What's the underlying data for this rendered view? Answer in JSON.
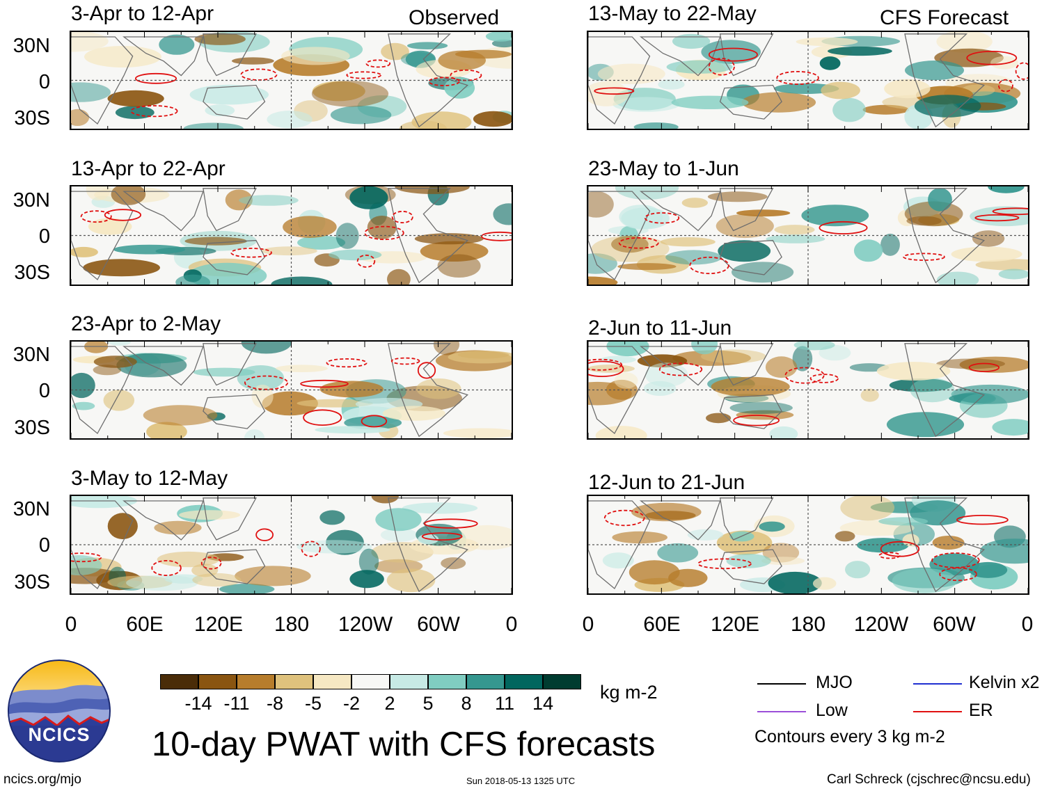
{
  "column_headers": {
    "left": "Observed",
    "right": "CFS Forecast"
  },
  "panels_left": [
    {
      "title": "3-Apr to 12-Apr"
    },
    {
      "title": "13-Apr to 22-Apr"
    },
    {
      "title": "23-Apr to 2-May"
    },
    {
      "title": "3-May to 12-May"
    }
  ],
  "panels_right": [
    {
      "title": "13-May to 22-May"
    },
    {
      "title": "23-May to 1-Jun"
    },
    {
      "title": "2-Jun to 11-Jun"
    },
    {
      "title": "12-Jun to 21-Jun"
    }
  ],
  "lat_labels": [
    "30N",
    "0",
    "30S"
  ],
  "lon_labels": [
    "0",
    "60E",
    "120E",
    "180",
    "120W",
    "60W",
    "0"
  ],
  "colorbar": {
    "colors": [
      "#4a2c08",
      "#8a5511",
      "#b77d2c",
      "#dfc27d",
      "#f6e8c3",
      "#f7f7f5",
      "#c7eae5",
      "#80cdc1",
      "#35978f",
      "#01665e",
      "#003c30"
    ],
    "labels": [
      "-14",
      "-11",
      "-8",
      "-5",
      "-2",
      "2",
      "5",
      "8",
      "11",
      "14"
    ],
    "units": "kg m-2"
  },
  "main_title": "10-day PWAT with CFS forecasts",
  "legend": {
    "items": [
      {
        "label": "MJO",
        "color": "#000000"
      },
      {
        "label": "Kelvin x2",
        "color": "#1f2fd0"
      },
      {
        "label": "Low",
        "color": "#9b4fd8"
      },
      {
        "label": "ER",
        "color": "#e01010"
      }
    ],
    "note": "Contours every 3 kg m-2"
  },
  "logo": {
    "text": "NCICS"
  },
  "footer": {
    "url": "ncics.org/mjo",
    "timestamp": "Sun 2018-05-13 1325 UTC",
    "credit": "Carl Schreck (cjschrec@ncsu.edu)"
  }
}
